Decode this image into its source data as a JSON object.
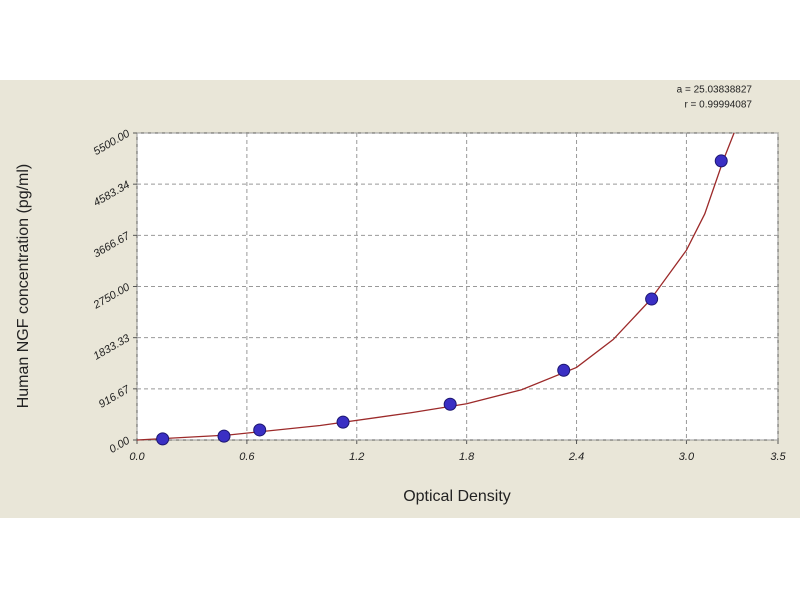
{
  "chart_data": {
    "type": "scatter",
    "x_label": "Optical Density",
    "y_label": "Human NGF concentration (pg/ml)",
    "annotations": [
      "a = 25.03838827",
      "r = 0.99994087"
    ],
    "xlim": [
      0,
      3.5
    ],
    "ylim": [
      0,
      5500
    ],
    "xticks": [
      {
        "value": 0,
        "label": "0.0"
      },
      0.6,
      1.2,
      1.8,
      2.4,
      {
        "value": 3,
        "label": "3.0"
      },
      3.5
    ],
    "yticks": [
      {
        "value": 0,
        "label": "0.00"
      },
      916.67,
      1833.33,
      {
        "value": 2750,
        "label": "2750.00"
      },
      3666.67,
      4583.34,
      {
        "value": 5500,
        "label": "5500.00"
      }
    ],
    "grid": true,
    "series": [
      {
        "color": "#3a2fc4",
        "x": [
          0.14,
          0.475,
          0.67,
          1.125,
          1.71,
          2.33,
          2.81,
          3.19
        ],
        "values": [
          20,
          70,
          180,
          320,
          640,
          1250,
          2525,
          5000
        ]
      },
      {
        "color": "#9c2a2a",
        "line": true,
        "x": [
          0,
          0.5,
          1.0,
          1.5,
          1.8,
          2.1,
          2.4,
          2.6,
          2.8,
          3.0,
          3.1,
          3.2,
          3.26
        ],
        "values": [
          0,
          90,
          260,
          490,
          650,
          900,
          1300,
          1800,
          2500,
          3400,
          4050,
          5000,
          5500
        ]
      }
    ]
  }
}
